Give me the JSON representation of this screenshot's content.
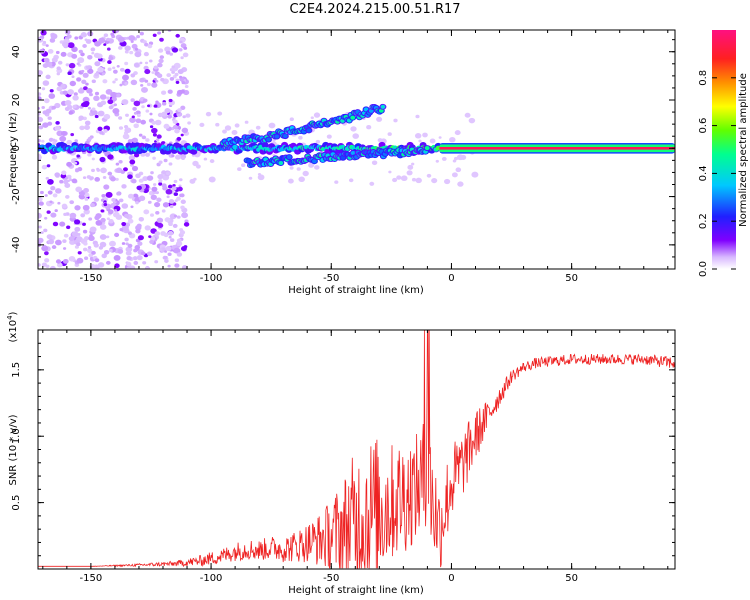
{
  "title": "C2E4.2024.215.00.51.R17",
  "colors": {
    "frame": "#000000",
    "snr_line": "#ee2222",
    "colormap": [
      "#e8e0ff",
      "#c080ff",
      "#8000ff",
      "#2020ff",
      "#00c0ff",
      "#00ff90",
      "#60ff00",
      "#ffff00",
      "#ff8000",
      "#ff2030",
      "#ff1080"
    ]
  },
  "chart_data": [
    {
      "id": "spectrogram",
      "type": "heatmap",
      "xlabel": "Height of straight line (km)",
      "ylabel": "Frequency (Hz)",
      "xlim": [
        -172,
        93
      ],
      "ylim": [
        -50,
        49
      ],
      "xticks": [
        -150,
        -100,
        -50,
        0,
        50
      ],
      "yticks": [
        -40,
        -20,
        0,
        20,
        40
      ],
      "xtick_labels": [
        "-150",
        "-100",
        "-50",
        "0",
        "50"
      ],
      "ytick_labels": [
        "-40",
        "-20",
        "0",
        "20",
        "40"
      ],
      "colorbar": {
        "label": "Normalized spectral amplitude",
        "range": [
          0,
          1
        ],
        "ticks": [
          0.0,
          0.2,
          0.4,
          0.6,
          0.8
        ],
        "tick_labels": [
          "0.0",
          "0.2",
          "0.4",
          "0.6",
          "0.8"
        ]
      },
      "features": [
        {
          "name": "carrier",
          "x_from": -172,
          "x_to": 93,
          "freq": 0,
          "amplitude_from": 0.25,
          "amplitude_to": 0.95
        },
        {
          "name": "upper branch",
          "x_from": -95,
          "x_to": -28,
          "freq_from": 2,
          "freq_to": 17,
          "amplitude": 0.4
        },
        {
          "name": "lower branch",
          "x_from": -85,
          "x_to": -10,
          "freq_from": -6,
          "freq_to": -1,
          "amplitude": 0.4
        },
        {
          "name": "noise region",
          "x_from": -172,
          "x_to": -110,
          "freq_from": -50,
          "freq_to": 49,
          "amplitude": 0.05
        }
      ]
    },
    {
      "id": "snr",
      "type": "line",
      "xlabel": "Height of straight line (km)",
      "ylabel": "SNR (10 * v/v)",
      "y_multiplier": "(x10",
      "y_multiplier_exp": "4",
      "y_multiplier_close": ")",
      "xlim": [
        -172,
        93
      ],
      "ylim": [
        0,
        1.8
      ],
      "xticks": [
        -150,
        -100,
        -50,
        0,
        50
      ],
      "yticks": [
        0.5,
        1.0,
        1.5
      ],
      "xtick_labels": [
        "-150",
        "-100",
        "-50",
        "0",
        "50"
      ],
      "ytick_labels": [
        "0.5",
        "1.0",
        "1.5"
      ],
      "series": [
        {
          "x": [
            -172,
            -150,
            -130,
            -115,
            -105,
            -100,
            -95,
            -90,
            -85,
            -80,
            -75,
            -70,
            -65,
            -60,
            -55,
            -50,
            -45,
            -40,
            -35,
            -30,
            -25,
            -20,
            -15,
            -10,
            -5,
            0,
            5,
            10,
            15,
            20,
            25,
            30,
            35,
            40,
            50,
            60,
            70,
            80,
            93
          ],
          "y": [
            0.02,
            0.02,
            0.03,
            0.04,
            0.06,
            0.08,
            0.1,
            0.13,
            0.15,
            0.14,
            0.16,
            0.15,
            0.17,
            0.2,
            0.22,
            0.25,
            0.3,
            0.35,
            0.42,
            0.45,
            0.5,
            0.55,
            0.6,
            0.7,
            0.3,
            0.65,
            0.8,
            1.0,
            1.15,
            1.3,
            1.45,
            1.52,
            1.55,
            1.56,
            1.58,
            1.58,
            1.58,
            1.58,
            1.55
          ],
          "noise": [
            0,
            0,
            0.01,
            0.02,
            0.04,
            0.05,
            0.06,
            0.07,
            0.08,
            0.08,
            0.09,
            0.1,
            0.12,
            0.15,
            0.2,
            0.28,
            0.4,
            0.55,
            0.6,
            0.55,
            0.45,
            0.45,
            0.4,
            0.5,
            0.35,
            0.3,
            0.25,
            0.2,
            0.12,
            0.08,
            0.05,
            0.04,
            0.04,
            0.04,
            0.04,
            0.04,
            0.04,
            0.04,
            0.05
          ]
        }
      ]
    }
  ]
}
